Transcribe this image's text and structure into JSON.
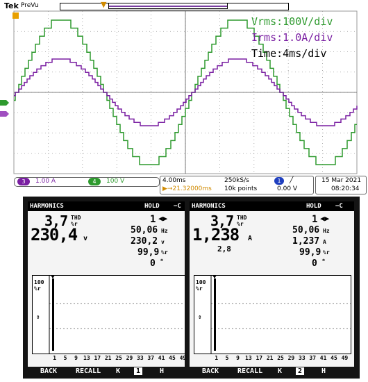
{
  "scope": {
    "brand": "Tek",
    "mode": "PreVu",
    "legend": {
      "v": "Vrms:100V/div",
      "i": "Irms:1.0A/div",
      "t_prefix": "T",
      "t_rest": "ime:4ms/div"
    },
    "channels": {
      "ch3": {
        "num": "3",
        "scale": "1.00 A",
        "color": "#7a1fa2"
      },
      "ch4": {
        "num": "4",
        "scale": "100 V",
        "color": "#2e9a2e"
      }
    },
    "timebase": {
      "div": "4.00ms",
      "rate": "250kS/s",
      "delay": "▶→21.32000ms",
      "points": "10k points"
    },
    "trigger": {
      "ch": "1",
      "slope": "╱",
      "level": "0.00 V"
    },
    "datetime": {
      "date": "15 Mar  2021",
      "time": "08:20:34"
    },
    "colors": {
      "voltage": "#2e9a2e",
      "current": "#7a1fa2",
      "grid": "#9a9a9a"
    }
  },
  "meters": [
    {
      "title": "HARMONICS",
      "hold": "HOLD",
      "batt": "−C",
      "thd_value": "3,7",
      "thd_label": "THD",
      "thd_unit": "%r",
      "main_value": "230,4",
      "main_unit": "v",
      "harmonic": "1",
      "freq_value": "50,06",
      "freq_unit": "Hz",
      "fund_value": "230,2",
      "fund_unit": "v",
      "pct_value": "99,9",
      "pct_unit": "%r",
      "phase_value": "0",
      "phase_unit": "°",
      "extra": "",
      "y_max": "100",
      "y_unit": "%r",
      "x_labels": [
        "1",
        "5",
        "9",
        "13",
        "17",
        "21",
        "25",
        "29",
        "33",
        "37",
        "41",
        "45",
        "49"
      ],
      "keys": {
        "back": "BACK",
        "recall": "RECALL",
        "prev": "K",
        "page": "1",
        "next": "H"
      }
    },
    {
      "title": "HARMONICS",
      "hold": "HOLD",
      "batt": "−C",
      "thd_value": "3,7",
      "thd_label": "THD",
      "thd_unit": "%r",
      "main_value": "1,238",
      "main_unit": "A",
      "harmonic": "1",
      "freq_value": "50,06",
      "freq_unit": "Hz",
      "fund_value": "1,237",
      "fund_unit": "A",
      "pct_value": "99,9",
      "pct_unit": "%r",
      "phase_value": "0",
      "phase_unit": "°",
      "extra": "2,8",
      "y_max": "100",
      "y_unit": "%r",
      "x_labels": [
        "1",
        "5",
        "9",
        "13",
        "17",
        "21",
        "25",
        "29",
        "33",
        "37",
        "41",
        "45",
        "49"
      ],
      "keys": {
        "back": "BACK",
        "recall": "RECALL",
        "prev": "K",
        "page": "2",
        "next": "H"
      }
    }
  ]
}
